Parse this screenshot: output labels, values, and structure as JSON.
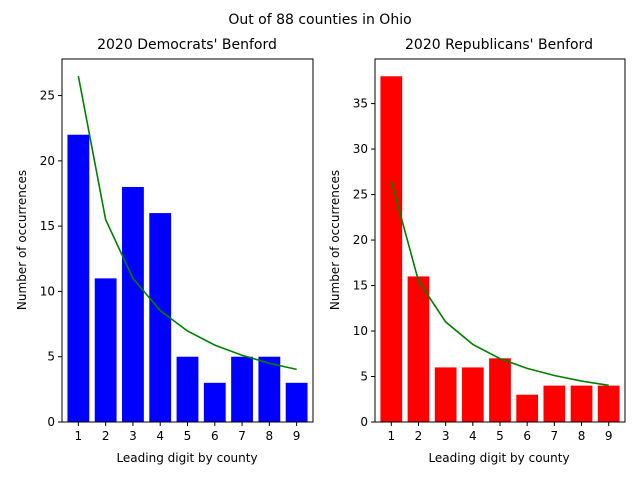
{
  "figure": {
    "suptitle": "Out of 88 counties in Ohio"
  },
  "chart_data": [
    {
      "type": "bar",
      "title": "2020 Democrats' Benford",
      "xlabel": "Leading digit by county",
      "ylabel": "Number of occurrences",
      "categories": [
        "1",
        "2",
        "3",
        "4",
        "5",
        "6",
        "7",
        "8",
        "9"
      ],
      "values": [
        22,
        11,
        18,
        16,
        5,
        3,
        5,
        5,
        3
      ],
      "bar_color": "#0000ff",
      "benford_expected": [
        26.49,
        15.5,
        11.0,
        8.53,
        6.97,
        5.89,
        5.11,
        4.5,
        4.03
      ],
      "benford_color": "#008000",
      "ylim": [
        0,
        27.8
      ],
      "yticks": [
        0,
        5,
        10,
        15,
        20,
        25
      ],
      "grid": false
    },
    {
      "type": "bar",
      "title": "2020 Republicans' Benford",
      "xlabel": "Leading digit by county",
      "ylabel": "Number of occurrences",
      "categories": [
        "1",
        "2",
        "3",
        "4",
        "5",
        "6",
        "7",
        "8",
        "9"
      ],
      "values": [
        38,
        16,
        6,
        6,
        7,
        3,
        4,
        4,
        4
      ],
      "bar_color": "#ff0000",
      "benford_expected": [
        26.49,
        15.5,
        11.0,
        8.53,
        6.97,
        5.89,
        5.11,
        4.5,
        4.03
      ],
      "benford_color": "#008000",
      "ylim": [
        0,
        39.9
      ],
      "yticks": [
        0,
        5,
        10,
        15,
        20,
        25,
        30,
        35
      ],
      "grid": false
    }
  ]
}
